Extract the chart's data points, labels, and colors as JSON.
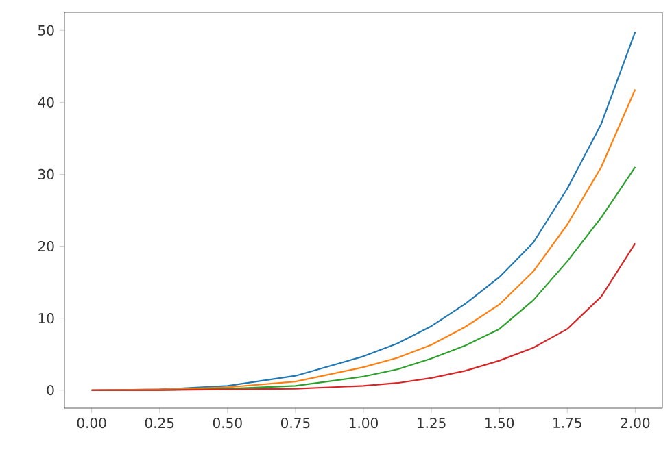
{
  "chart_data": {
    "type": "line",
    "xlim": [
      -0.1,
      2.1
    ],
    "ylim": [
      -2.5,
      52.5
    ],
    "xticks": [
      {
        "value": 0,
        "label": "0.00"
      },
      {
        "value": 0.25,
        "label": "0.25"
      },
      {
        "value": 0.5,
        "label": "0.50"
      },
      {
        "value": 0.75,
        "label": "0.75"
      },
      {
        "value": 1,
        "label": "1.00"
      },
      {
        "value": 1.25,
        "label": "1.25"
      },
      {
        "value": 1.5,
        "label": "1.50"
      },
      {
        "value": 1.75,
        "label": "1.75"
      },
      {
        "value": 2,
        "label": "2.00"
      }
    ],
    "yticks": [
      0,
      10,
      20,
      30,
      40,
      50
    ],
    "x": [
      0,
      0.25,
      0.5,
      0.75,
      1,
      1.125,
      1.25,
      1.375,
      1.5,
      1.625,
      1.75,
      1.875,
      2
    ],
    "grid": false,
    "marker": "none",
    "line_style": "solid",
    "series": [
      {
        "color": "#1f77b4",
        "values": [
          0,
          0.1,
          0.6,
          2.0,
          4.7,
          6.5,
          8.9,
          12,
          15.7,
          20.5,
          28,
          37,
          49.8
        ]
      },
      {
        "color": "#ff7f0e",
        "values": [
          0,
          0.1,
          0.4,
          1.2,
          3.2,
          4.5,
          6.3,
          8.8,
          11.9,
          16.5,
          23,
          31,
          41.8
        ]
      },
      {
        "color": "#2ca02c",
        "values": [
          0,
          0,
          0.2,
          0.6,
          1.9,
          2.9,
          4.4,
          6.2,
          8.5,
          12.5,
          17.9,
          24,
          31
        ]
      },
      {
        "color": "#d62728",
        "values": [
          0,
          0,
          0.1,
          0.2,
          0.6,
          1.0,
          1.7,
          2.7,
          4.1,
          5.9,
          8.5,
          13,
          20.4
        ]
      }
    ]
  }
}
